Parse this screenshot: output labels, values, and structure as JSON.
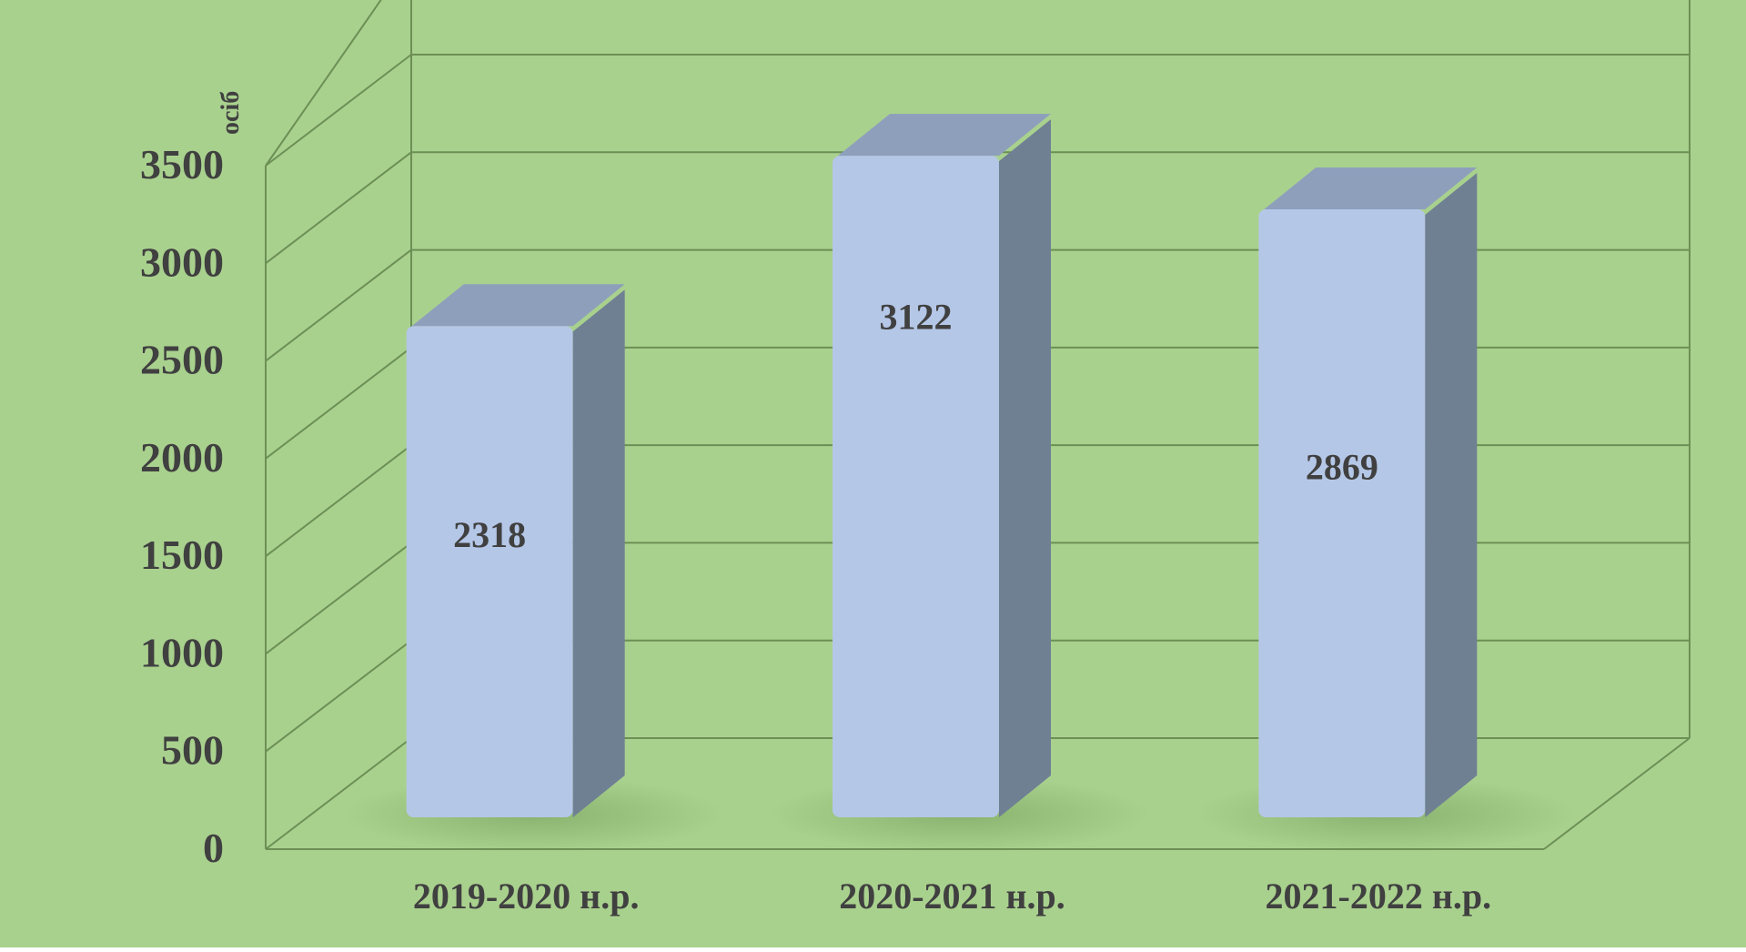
{
  "colors": {
    "background": "#a9d18e",
    "gridline": "#6c8f55",
    "bar_front": "#b4c7e7",
    "bar_top": "#8e9fbc",
    "bar_side": "#6f8093",
    "text": "#404040"
  },
  "chart_data": {
    "type": "bar",
    "title": "",
    "xlabel": "",
    "ylabel": "осіб",
    "categories": [
      "2019-2020 н.р.",
      "2020-2021 н.р.",
      "2021-2022 н.р."
    ],
    "values": [
      2318,
      3122,
      2869
    ],
    "data_labels": [
      "2318",
      "3122",
      "2869"
    ],
    "yticks": [
      0,
      500,
      1000,
      1500,
      2000,
      2500,
      3000,
      3500
    ],
    "ytick_labels": [
      "0",
      "500",
      "1000",
      "1500",
      "2000",
      "2500",
      "3000",
      "3500"
    ],
    "ylim": [
      0,
      3500
    ],
    "grid": true,
    "style": "3d-column"
  }
}
